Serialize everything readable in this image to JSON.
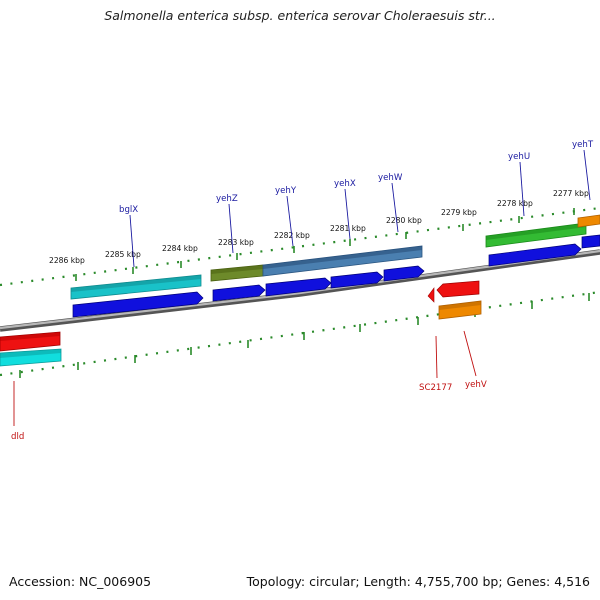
{
  "title": "Salmonella enterica subsp. enterica serovar Choleraesuis str...",
  "footer": {
    "accession": "Accession: NC_006905",
    "summary": "Topology: circular; Length: 4,755,700 bp; Genes: 4,516"
  },
  "colors": {
    "background": "#ffffff",
    "backbone": "#8a8a8a",
    "tick": "#2a8a2a",
    "forward_label": "#1a1aa0",
    "reverse_label": "#c01010",
    "blue_cds": "#1010dd",
    "cyan_feature": "#19c2c8",
    "olive_feature": "#6d8a2a",
    "steel_feature": "#4a7fb0",
    "green_feature": "#33bb33",
    "red_feature": "#ee1111",
    "orange_feature": "#ee8800",
    "bright_cyan": "#11dddd"
  },
  "scale_labels": [
    "2286 kbp",
    "2285 kbp",
    "2284 kbp",
    "2283 kbp",
    "2282 kbp",
    "2281 kbp",
    "2280 kbp",
    "2279 kbp",
    "2278 kbp",
    "2277 kbp"
  ],
  "forward_genes": [
    "bglX",
    "yehZ",
    "yehY",
    "yehX",
    "yehW",
    "yehU",
    "yehT"
  ],
  "reverse_genes": [
    "dld",
    "SC2177",
    "yehV"
  ]
}
